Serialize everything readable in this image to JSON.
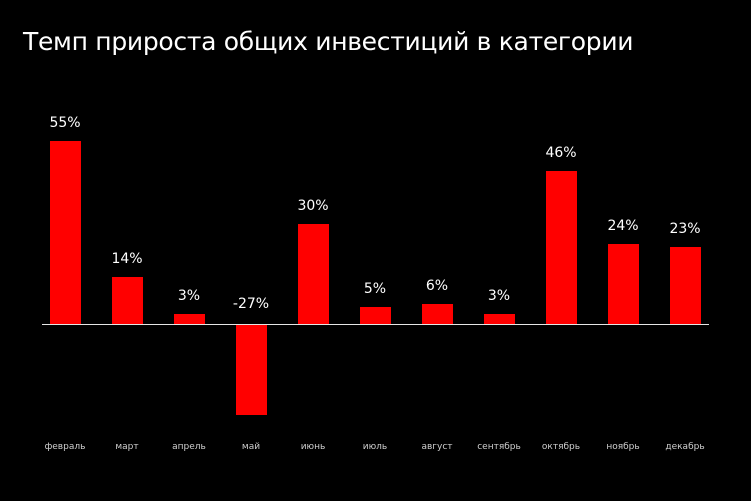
{
  "chart_data": {
    "type": "bar",
    "title": "Темп прироста общих инвестиций в категории",
    "xlabel": "",
    "ylabel": "",
    "categories": [
      "февраль",
      "март",
      "апрель",
      "май",
      "июнь",
      "июль",
      "август",
      "сентябрь",
      "октябрь",
      "ноябрь",
      "декабрь"
    ],
    "values": [
      55,
      14,
      3,
      -27,
      30,
      5,
      6,
      3,
      46,
      24,
      23
    ],
    "value_labels": [
      "55%",
      "14%",
      "3%",
      "-27%",
      "30%",
      "5%",
      "6%",
      "3%",
      "46%",
      "24%",
      "23%"
    ],
    "unit": "%",
    "ylim": [
      -30,
      60
    ],
    "grid": false,
    "legend": null,
    "bar_color": "#ff0000",
    "background_color": "#000000"
  }
}
